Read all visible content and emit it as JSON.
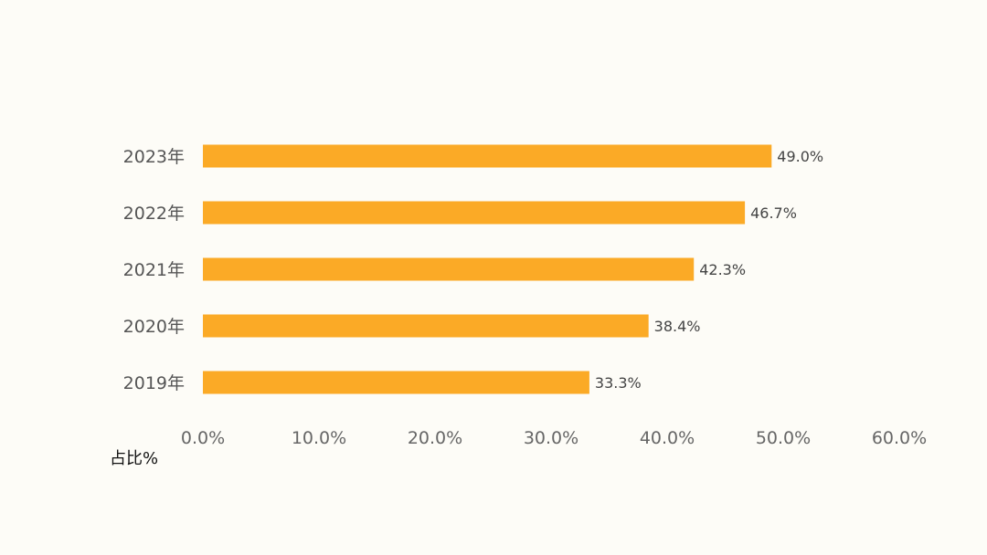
{
  "chart_data": {
    "type": "bar",
    "orientation": "horizontal",
    "categories": [
      "2023年",
      "2022年",
      "2021年",
      "2020年",
      "2019年"
    ],
    "values": [
      49.0,
      46.7,
      42.3,
      38.4,
      33.3
    ],
    "data_labels": [
      "49.0%",
      "46.7%",
      "42.3%",
      "38.4%",
      "33.3%"
    ],
    "xlim": [
      0,
      60
    ],
    "x_ticks": [
      0,
      10,
      20,
      30,
      40,
      50,
      60
    ],
    "x_tick_labels": [
      "0.0%",
      "10.0%",
      "20.0%",
      "30.0%",
      "40.0%",
      "50.0%",
      "60.0%"
    ],
    "xlabel": "占比%",
    "grid": false,
    "legend": "none",
    "colors": {
      "bar": "#FBAA26",
      "background": "#FDFCF7"
    }
  }
}
